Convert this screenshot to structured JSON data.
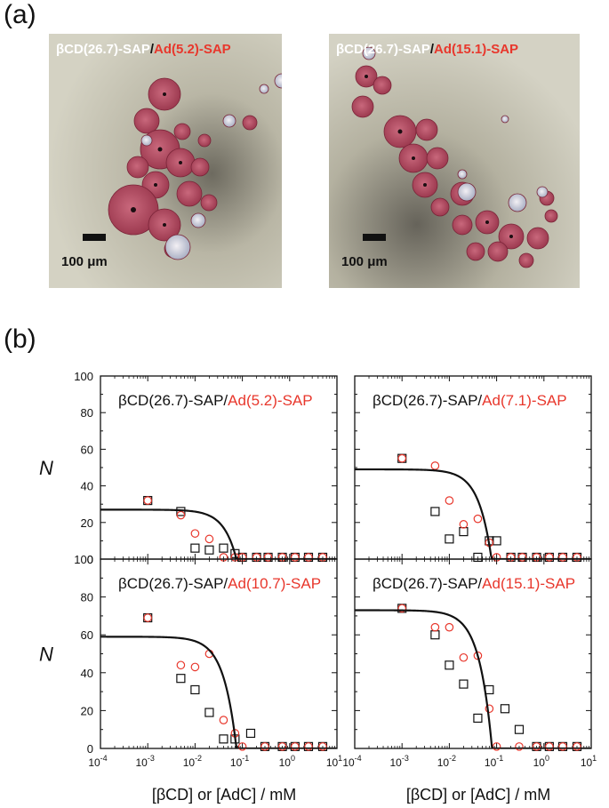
{
  "panel_a": {
    "label": "(a)",
    "images": [
      {
        "title_prefix": "βCD(26.7)-SAP",
        "title_sep": "/",
        "title_suffix": "Ad(5.2)-SAP",
        "scale_bar": "100 μm"
      },
      {
        "title_prefix": "βCD(26.7)-SAP",
        "title_sep": "/",
        "title_suffix": "Ad(15.1)-SAP",
        "scale_bar": "100 μm"
      }
    ]
  },
  "panel_b": {
    "label": "(b)"
  },
  "colors": {
    "red": "#e8372c",
    "black": "#111111"
  },
  "chart_data": [
    {
      "type": "scatter",
      "title_prefix": "βCD(26.7)-SAP/",
      "title_suffix": "Ad(5.2)-SAP",
      "ylabel": "N",
      "xlabel": "",
      "xscale": "log",
      "xlim": [
        0.0001,
        10
      ],
      "ylim": [
        0,
        100
      ],
      "yticks": [
        "0",
        "20",
        "40",
        "60",
        "80",
        "100"
      ],
      "xticks": [],
      "series": [
        {
          "marker": "square",
          "color": "#111111",
          "x": [
            0.001,
            0.005,
            0.01,
            0.02,
            0.04,
            0.07,
            0.1,
            0.2,
            0.35,
            0.7,
            1.3,
            2.5,
            5
          ],
          "y": [
            32,
            26,
            6,
            5,
            6,
            3,
            1,
            1,
            1,
            1,
            1,
            1,
            1
          ]
        },
        {
          "marker": "circle",
          "color": "#e8372c",
          "x": [
            0.001,
            0.005,
            0.01,
            0.02,
            0.04,
            0.07,
            0.1,
            0.2,
            0.35,
            0.7,
            1.3,
            2.5,
            5
          ],
          "y": [
            32,
            24,
            14,
            11,
            1,
            1,
            1,
            1,
            1,
            1,
            1,
            1,
            1
          ]
        },
        {
          "line": true,
          "color": "#111111",
          "plateau": 27,
          "xc": 0.075
        }
      ]
    },
    {
      "type": "scatter",
      "title_prefix": "βCD(26.7)-SAP/",
      "title_suffix": "Ad(7.1)-SAP",
      "ylabel": "",
      "xlabel": "",
      "xscale": "log",
      "xlim": [
        0.0001,
        10
      ],
      "ylim": [
        0,
        100
      ],
      "yticks": [],
      "xticks": [],
      "series": [
        {
          "marker": "square",
          "color": "#111111",
          "x": [
            0.001,
            0.005,
            0.01,
            0.02,
            0.04,
            0.07,
            0.1,
            0.2,
            0.35,
            0.7,
            1.3,
            2.5,
            5
          ],
          "y": [
            55,
            26,
            11,
            15,
            1,
            10,
            10,
            1,
            1,
            1,
            1,
            1,
            1
          ]
        },
        {
          "marker": "circle",
          "color": "#e8372c",
          "x": [
            0.001,
            0.005,
            0.01,
            0.02,
            0.04,
            0.07,
            0.1,
            0.2,
            0.35,
            0.7,
            1.3,
            2.5,
            5
          ],
          "y": [
            55,
            51,
            32,
            19,
            22,
            9,
            1,
            1,
            1,
            1,
            1,
            1,
            1
          ]
        },
        {
          "line": true,
          "color": "#111111",
          "plateau": 49,
          "xc": 0.078
        }
      ]
    },
    {
      "type": "scatter",
      "title_prefix": "βCD(26.7)-SAP/",
      "title_suffix": "Ad(10.7)-SAP",
      "ylabel": "N",
      "xlabel": "[βCD] or [AdC] / mM",
      "xscale": "log",
      "xlim": [
        0.0001,
        10
      ],
      "ylim": [
        0,
        100
      ],
      "yticks": [
        "0",
        "20",
        "40",
        "60",
        "80",
        "100"
      ],
      "xticks": [
        "10^-4",
        "10^-3",
        "10^-2",
        "10^-1",
        "10^0",
        "10^1"
      ],
      "series": [
        {
          "marker": "square",
          "color": "#111111",
          "x": [
            0.001,
            0.005,
            0.01,
            0.02,
            0.04,
            0.07,
            0.15,
            0.3,
            0.7,
            1.3,
            2.5,
            5
          ],
          "y": [
            69,
            37,
            31,
            19,
            5,
            5,
            8,
            1,
            1,
            1,
            1,
            1
          ]
        },
        {
          "marker": "circle",
          "color": "#e8372c",
          "x": [
            0.001,
            0.005,
            0.01,
            0.02,
            0.04,
            0.07,
            0.1,
            0.3,
            0.7,
            1.3,
            2.5,
            5
          ],
          "y": [
            69,
            44,
            43,
            50,
            15,
            8,
            1,
            1,
            1,
            1,
            1,
            1
          ]
        },
        {
          "line": true,
          "color": "#111111",
          "plateau": 59,
          "xc": 0.075
        }
      ]
    },
    {
      "type": "scatter",
      "title_prefix": "βCD(26.7)-SAP/",
      "title_suffix": "Ad(15.1)-SAP",
      "ylabel": "",
      "xlabel": "[βCD] or [AdC] / mM",
      "xscale": "log",
      "xlim": [
        0.0001,
        10
      ],
      "ylim": [
        0,
        100
      ],
      "yticks": [],
      "xticks": [
        "10^-4",
        "10^-3",
        "10^-2",
        "10^-1",
        "10^0",
        "10^1"
      ],
      "series": [
        {
          "marker": "square",
          "color": "#111111",
          "x": [
            0.001,
            0.005,
            0.01,
            0.02,
            0.04,
            0.07,
            0.15,
            0.3,
            0.7,
            1.3,
            2.5,
            5
          ],
          "y": [
            74,
            60,
            44,
            34,
            16,
            31,
            21,
            10,
            1,
            1,
            1,
            1
          ]
        },
        {
          "marker": "circle",
          "color": "#e8372c",
          "x": [
            0.001,
            0.005,
            0.01,
            0.02,
            0.04,
            0.07,
            0.1,
            0.3,
            0.7,
            1.3,
            2.5,
            5
          ],
          "y": [
            74,
            64,
            64,
            48,
            49,
            21,
            1,
            1,
            1,
            1,
            1,
            1
          ]
        },
        {
          "line": true,
          "color": "#111111",
          "plateau": 73,
          "xc": 0.08
        }
      ]
    }
  ]
}
